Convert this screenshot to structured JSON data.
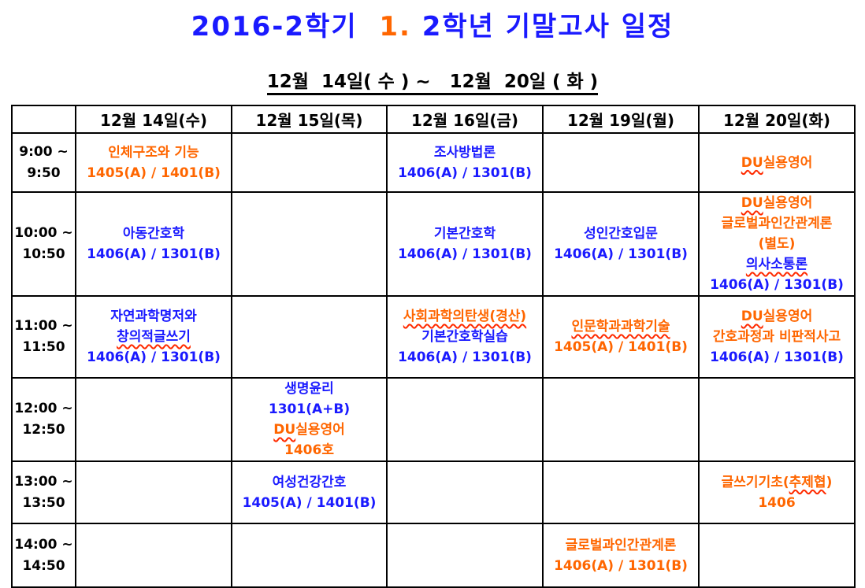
{
  "colors": {
    "blue": "#1a1aff",
    "orange": "#ff6600",
    "black": "#000000",
    "wavy_underline": "#ff2a00",
    "table_border": "#000000"
  },
  "page": {
    "title_segments": [
      {
        "t": "2016-2학기  ",
        "c": "blue"
      },
      {
        "t": "1.",
        "c": "orange"
      },
      {
        "t": " 2학년 기말고사 일정",
        "c": "blue"
      }
    ],
    "subtitle": "12월  14일( 수 ) ~   12월  20일 ( 화 )"
  },
  "table": {
    "corner_header": "",
    "day_headers": [
      "12월 14일(수)",
      "12월 15일(목)",
      "12월 16일(금)",
      "12월 19일(월)",
      "12월 20일(화)"
    ],
    "rows": [
      {
        "time": [
          "9:00 ~",
          "9:50"
        ],
        "cells": [
          [
            [
              {
                "t": "인체구조와 기능",
                "c": "orange"
              }
            ],
            [
              {
                "t": "1405(A) / 1401(B)",
                "c": "orange"
              }
            ]
          ],
          [],
          [
            [
              {
                "t": "조사방법론",
                "c": "blue"
              }
            ],
            [
              {
                "t": "1406(A) / 1301(B)",
                "c": "blue"
              }
            ]
          ],
          [],
          [
            [
              {
                "t": "DU",
                "c": "orange",
                "w": true
              },
              {
                "t": "실용영어",
                "c": "orange"
              }
            ]
          ]
        ]
      },
      {
        "time": [
          "10:00 ~",
          "10:50"
        ],
        "cells": [
          [
            [
              {
                "t": "아동간호학",
                "c": "blue"
              }
            ],
            [
              {
                "t": "1406(A) / 1301(B)",
                "c": "blue"
              }
            ]
          ],
          [],
          [
            [
              {
                "t": "기본간호학",
                "c": "blue"
              }
            ],
            [
              {
                "t": "1406(A) / 1301(B)",
                "c": "blue"
              }
            ]
          ],
          [
            [
              {
                "t": "성인간호입문",
                "c": "blue"
              }
            ],
            [
              {
                "t": "1406(A) / 1301(B)",
                "c": "blue"
              }
            ]
          ],
          [
            [
              {
                "t": "DU",
                "c": "orange",
                "w": true
              },
              {
                "t": "실용영어",
                "c": "orange"
              }
            ],
            [
              {
                "t": "글로벌과인간관계론",
                "c": "orange"
              }
            ],
            [
              {
                "t": "(별도)",
                "c": "orange"
              }
            ],
            [
              {
                "t": "의사소통론",
                "c": "blue",
                "w": true
              }
            ],
            [
              {
                "t": "1406(A) / 1301(B)",
                "c": "blue"
              }
            ]
          ]
        ]
      },
      {
        "time": [
          "11:00 ~",
          "11:50"
        ],
        "cells": [
          [
            [
              {
                "t": "자연과학명저와",
                "c": "blue"
              }
            ],
            [
              {
                "t": "창의적글쓰기",
                "c": "blue",
                "w": true
              }
            ],
            [
              {
                "t": "1406(A) / 1301(B)",
                "c": "blue"
              }
            ]
          ],
          [],
          [
            [
              {
                "t": "사회과학의탄생(경산)",
                "c": "orange",
                "w": true
              }
            ],
            [
              {
                "t": "기본간호학실습",
                "c": "blue"
              }
            ],
            [
              {
                "t": "1406(A) / 1301(B)",
                "c": "blue"
              }
            ]
          ],
          [
            [
              {
                "t": "인문학과과학기술",
                "c": "orange",
                "w": true
              }
            ],
            [
              {
                "t": "1405(A) / 1401(B)",
                "c": "orange"
              }
            ]
          ],
          [
            [
              {
                "t": "DU",
                "c": "orange",
                "w": true
              },
              {
                "t": "실용영어",
                "c": "orange"
              }
            ],
            [
              {
                "t": "간호과정과 비판적사고",
                "c": "orange"
              }
            ],
            [
              {
                "t": "1406(A) / 1301(B)",
                "c": "blue"
              }
            ]
          ]
        ]
      },
      {
        "time": [
          "12:00 ~",
          "12:50"
        ],
        "cells": [
          [],
          [
            [
              {
                "t": "생명윤리",
                "c": "blue"
              }
            ],
            [
              {
                "t": "1301(A+B)",
                "c": "blue"
              }
            ],
            [
              {
                "t": "DU",
                "c": "orange",
                "w": true
              },
              {
                "t": "실용영어",
                "c": "orange"
              }
            ],
            [
              {
                "t": "1406호",
                "c": "orange"
              }
            ]
          ],
          [],
          [],
          []
        ]
      },
      {
        "time": [
          "13:00 ~",
          "13:50"
        ],
        "cells": [
          [],
          [
            [
              {
                "t": "여성건강간호",
                "c": "blue"
              }
            ],
            [
              {
                "t": "1405(A) / 1401(B)",
                "c": "blue"
              }
            ]
          ],
          [],
          [],
          [
            [
              {
                "t": "글쓰기기초(",
                "c": "orange"
              },
              {
                "t": "추제협",
                "c": "orange",
                "w": true
              },
              {
                "t": ")",
                "c": "orange"
              }
            ],
            [
              {
                "t": "1406",
                "c": "orange"
              }
            ]
          ]
        ]
      },
      {
        "time": [
          "14:00 ~",
          "14:50"
        ],
        "cells": [
          [],
          [],
          [],
          [
            [
              {
                "t": "글로벌과인간관계론",
                "c": "orange"
              }
            ],
            [
              {
                "t": "1406(A) / 1301(B)",
                "c": "orange"
              }
            ]
          ],
          []
        ]
      }
    ]
  }
}
